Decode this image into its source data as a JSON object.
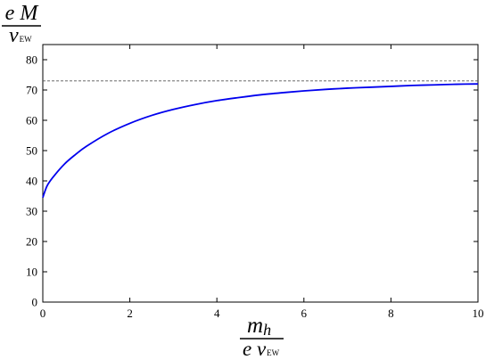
{
  "chart_data": {
    "type": "line",
    "title": "",
    "ylabel": {
      "numerator": "e M",
      "denominator_main": "v",
      "denominator_sub": "EW"
    },
    "xlabel": {
      "numerator_main": "m",
      "numerator_sub": "h",
      "denominator_main": "e v",
      "denominator_sub": "EW"
    },
    "xlim": [
      0,
      10
    ],
    "ylim": [
      0,
      85
    ],
    "xticks": [
      0,
      2,
      4,
      6,
      8,
      10
    ],
    "yticks": [
      0,
      10,
      20,
      30,
      40,
      50,
      60,
      70,
      80
    ],
    "grid": false,
    "series": [
      {
        "color": "#0000ee",
        "x": [
          0,
          0.1,
          0.25,
          0.5,
          0.75,
          1.0,
          1.5,
          2.0,
          2.5,
          3.0,
          3.5,
          4.0,
          4.5,
          5.0,
          5.5,
          6.0,
          6.5,
          7.0,
          7.5,
          8.0,
          8.5,
          9.0,
          9.5,
          10.0
        ],
        "y": [
          34.5,
          38.4,
          41.5,
          45.6,
          48.7,
          51.4,
          55.7,
          59.0,
          61.6,
          63.6,
          65.2,
          66.5,
          67.5,
          68.4,
          69.1,
          69.7,
          70.2,
          70.6,
          70.9,
          71.2,
          71.5,
          71.7,
          71.9,
          72.0
        ]
      }
    ],
    "reference_lines": [
      {
        "orientation": "horizontal",
        "y": 73,
        "style": "dashed",
        "color": "#555555"
      }
    ]
  }
}
